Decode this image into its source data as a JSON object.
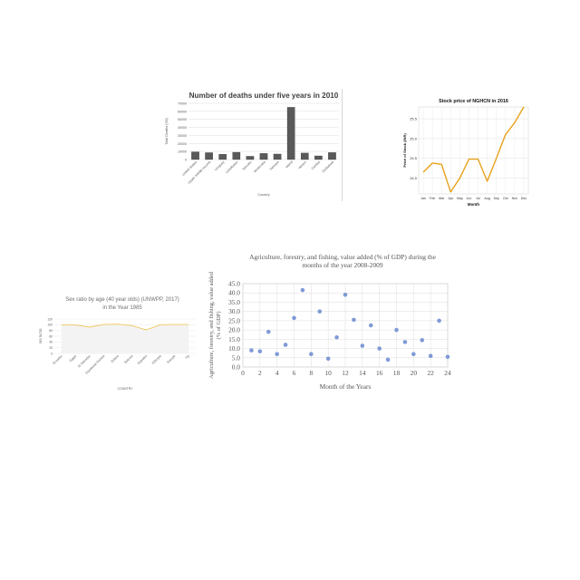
{
  "chart_data": [
    {
      "id": "deaths",
      "type": "bar",
      "title": "Number of deaths under five years in 2010",
      "xlabel": "Country",
      "ylabel": "Total Deaths ('00)",
      "ylim": [
        0,
        70000
      ],
      "yticks": [
        0,
        10000,
        20000,
        30000,
        40000,
        50000,
        60000,
        70000
      ],
      "categories": [
        "United States",
        "Upper middle income",
        "Uruguay",
        "Uzbekistan",
        "Vanuatu",
        "Venezuela",
        "Vietnam",
        "World",
        "Yemen",
        "Zambia",
        "Zimbabwe"
      ],
      "values": [
        9500,
        8500,
        6500,
        9000,
        4000,
        7500,
        6800,
        65000,
        8000,
        4500,
        8600
      ],
      "bar_color": "#5a5a5a",
      "grid": true
    },
    {
      "id": "stock",
      "type": "line",
      "title": "Stock price of NGHCN in 2016",
      "xlabel": "Month",
      "ylabel": "Price of Stock (INR)",
      "ylim": [
        23.6,
        25.8
      ],
      "yticks": [
        24.0,
        24.5,
        25.0,
        25.5
      ],
      "categories": [
        "Jan",
        "Feb",
        "Mar",
        "Apr",
        "May",
        "Jun",
        "Jul",
        "Aug",
        "Sep",
        "Oct",
        "Nov",
        "Dec"
      ],
      "values": [
        24.15,
        24.38,
        24.35,
        23.65,
        24.0,
        24.48,
        24.48,
        23.92,
        24.5,
        25.1,
        25.4,
        25.8
      ],
      "line_color": "#e8a21b",
      "grid": true
    },
    {
      "id": "sexratio",
      "type": "area",
      "title": "Sex ratio by age (40 year olds) (UNWPP, 2017) in the Year 1985",
      "xlabel": "COUNTRY",
      "ylabel": "SEX RATIO",
      "ylim": [
        0,
        120
      ],
      "yticks": [
        0,
        20,
        40,
        60,
        80,
        100,
        120
      ],
      "categories": [
        "Ecuador",
        "Egypt",
        "El Salvador",
        "Equatorial Guinea",
        "Eritrea",
        "Estonia",
        "Eswatini",
        "Ethiopia",
        "Europe",
        "Fiji"
      ],
      "values": [
        100,
        99,
        92,
        101,
        102,
        97,
        82,
        100,
        101,
        101
      ],
      "line_color": "#f2c75c",
      "fill_color": "#f3f3f3",
      "grid": true
    },
    {
      "id": "agriculture",
      "type": "scatter",
      "title": "Agriculture, forestry, and fishing, value added (% of GDP) during the months of the year 2008-2009",
      "xlabel": "Month of the Years",
      "ylabel": "Agriculture, forestry, and fishing, value added (% of GDP)",
      "xlim": [
        0,
        24
      ],
      "ylim": [
        0,
        45
      ],
      "xticks": [
        0,
        2,
        4,
        6,
        8,
        10,
        12,
        14,
        16,
        18,
        20,
        22,
        24
      ],
      "yticks": [
        0.0,
        5.0,
        10.0,
        15.0,
        20.0,
        25.0,
        30.0,
        35.0,
        40.0,
        45.0
      ],
      "x": [
        1,
        2,
        3,
        4,
        5,
        6,
        7,
        8,
        9,
        10,
        11,
        12,
        13,
        14,
        15,
        16,
        17,
        18,
        19,
        20,
        21,
        22,
        23,
        24
      ],
      "y": [
        9.0,
        8.5,
        19.0,
        7.0,
        12.0,
        26.5,
        41.5,
        7.0,
        30.0,
        4.5,
        16.0,
        39.0,
        25.5,
        11.5,
        22.5,
        10.0,
        4.0,
        20.0,
        13.5,
        7.0,
        14.5,
        6.0,
        25.0,
        5.5
      ],
      "point_color": "#7f9ad6",
      "grid": true
    }
  ]
}
